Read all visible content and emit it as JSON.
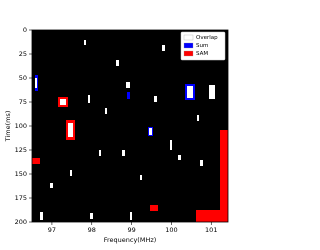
{
  "chart_data": {
    "type": "image",
    "xlabel": "Frequency(MHz)",
    "ylabel": "Time(ms)",
    "xlim": [
      96.5,
      101.42
    ],
    "ylim": [
      0,
      200
    ],
    "xticks": [
      97,
      98,
      99,
      100,
      101
    ],
    "yticks": [
      0,
      25,
      50,
      75,
      100,
      125,
      150,
      175,
      200
    ],
    "y_inverted": true,
    "background": "#000000",
    "legend": "upper right",
    "series": [
      {
        "name": "Overlap",
        "color": "#ffffff"
      },
      {
        "name": "Sum",
        "color": "#0000ff"
      },
      {
        "name": "SAM",
        "color": "#ff0000"
      }
    ]
  }
}
